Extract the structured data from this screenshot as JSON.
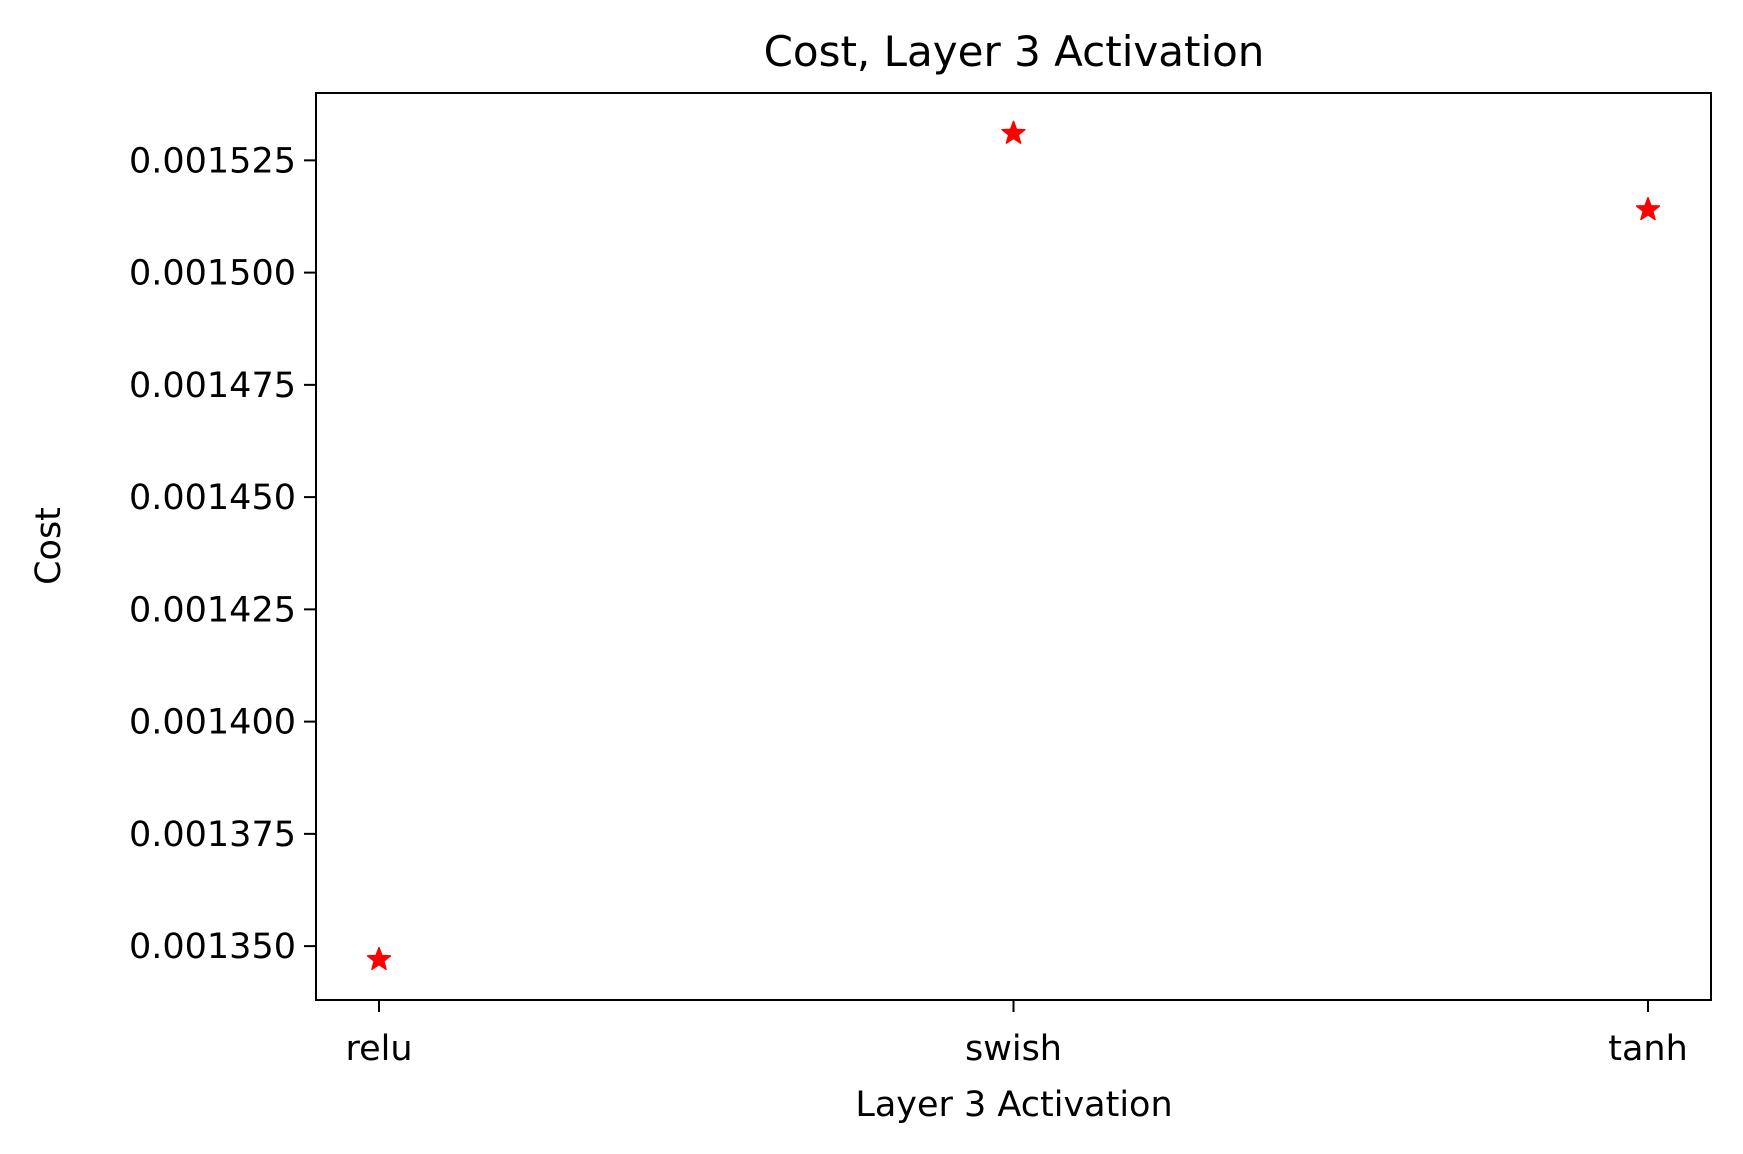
{
  "chart_data": {
    "type": "scatter",
    "title": "Cost, Layer 3 Activation",
    "xlabel": "Layer 3 Activation",
    "ylabel": "Cost",
    "categories": [
      "relu",
      "swish",
      "tanh"
    ],
    "series": [
      {
        "values": [
          0.001347,
          0.001531,
          0.001514
        ],
        "color": "#ff0000",
        "marker": "star"
      }
    ],
    "ylim": [
      0.001338,
      0.00154
    ],
    "yticks": [
      0.00135,
      0.001375,
      0.0014,
      0.001425,
      0.00145,
      0.001475,
      0.0015,
      0.001525
    ],
    "ytick_labels": [
      "0.001350",
      "0.001375",
      "0.001400",
      "0.001425",
      "0.001450",
      "0.001475",
      "0.001500",
      "0.001525"
    ],
    "grid": false,
    "legend": "none"
  }
}
